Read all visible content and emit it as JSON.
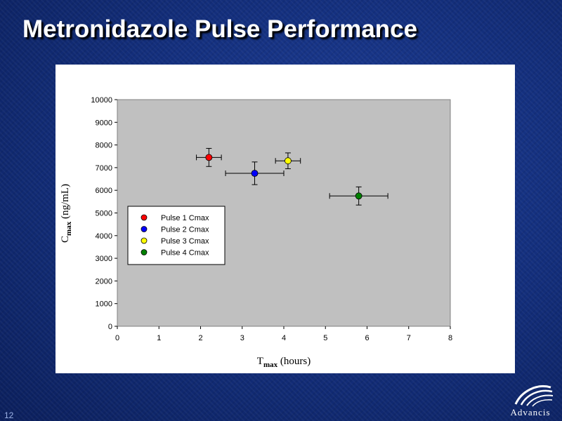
{
  "slide": {
    "title": "Metronidazole Pulse Performance",
    "number": "12",
    "logo_text": "Advancis"
  },
  "chart_data": {
    "type": "scatter",
    "xlabel_main": "T",
    "xlabel_sub": "max",
    "xlabel_unit": " (hours)",
    "ylabel_main": "C",
    "ylabel_sub": "max",
    "ylabel_unit": " (ng/mL)",
    "xlim": [
      0,
      8
    ],
    "ylim": [
      0,
      10000
    ],
    "xticks": [
      0,
      1,
      2,
      3,
      4,
      5,
      6,
      7,
      8
    ],
    "yticks": [
      0,
      1000,
      2000,
      3000,
      4000,
      5000,
      6000,
      7000,
      8000,
      9000,
      10000
    ],
    "plot_background": "#c0c0c0",
    "grid": false,
    "legend_position": "left",
    "series": [
      {
        "name": "Pulse 1 Cmax",
        "color": "#ff0000",
        "x": 2.2,
        "y": 7450,
        "x_err": 0.3,
        "y_err": 400
      },
      {
        "name": "Pulse 2 Cmax",
        "color": "#0000ff",
        "x": 3.3,
        "y": 6750,
        "x_err": 0.7,
        "y_err": 500
      },
      {
        "name": "Pulse 3 Cmax",
        "color": "#ffff00",
        "x": 4.1,
        "y": 7300,
        "x_err": 0.3,
        "y_err": 350
      },
      {
        "name": "Pulse 4 Cmax",
        "color": "#008000",
        "x": 5.8,
        "y": 5750,
        "x_err": 0.7,
        "y_err": 400
      }
    ]
  }
}
